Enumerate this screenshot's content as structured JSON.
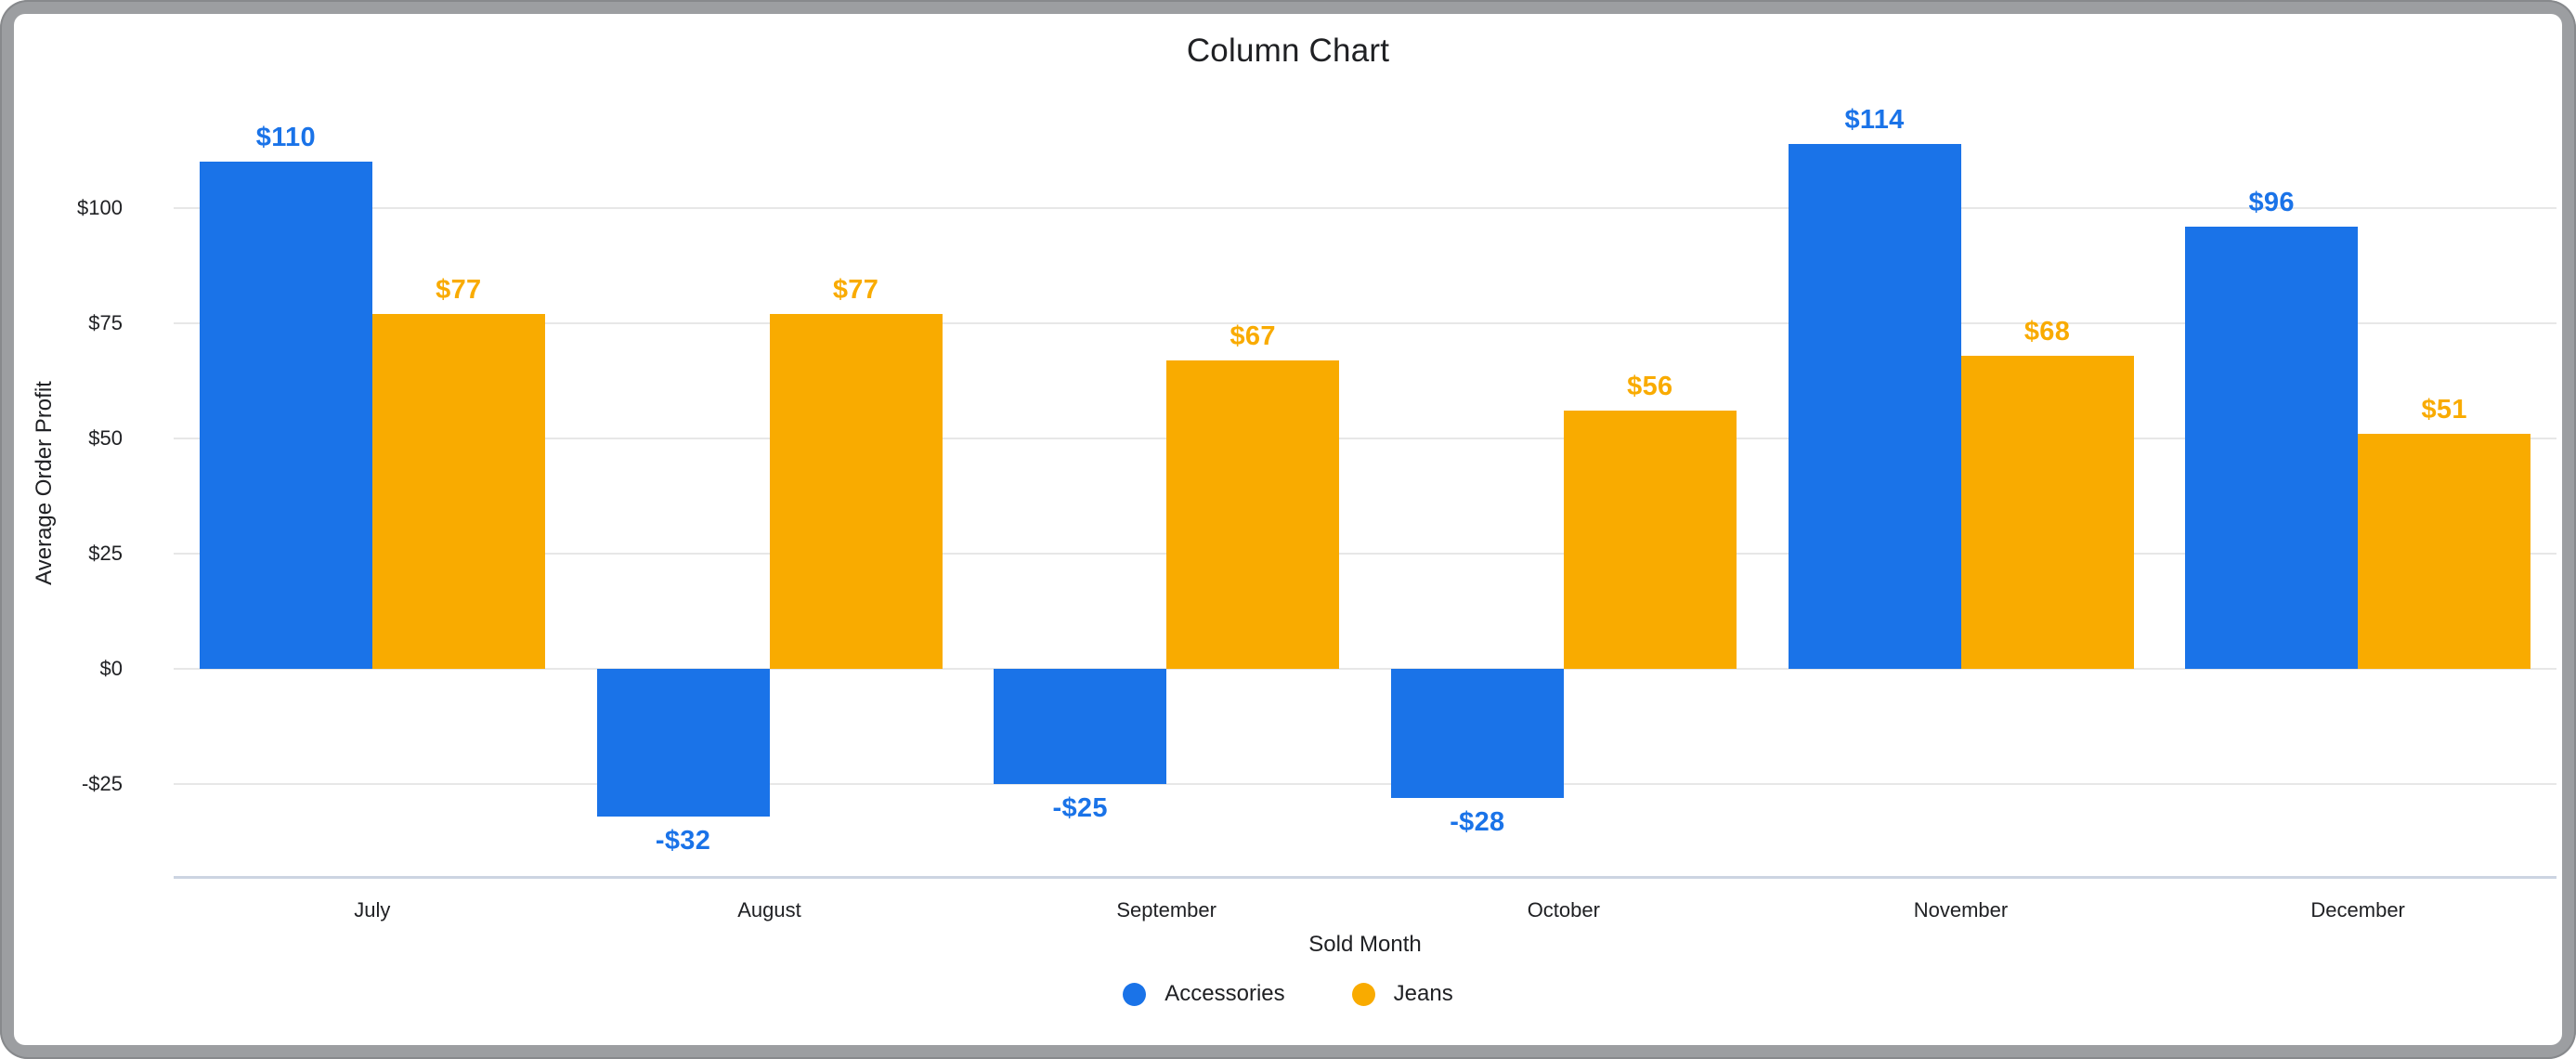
{
  "window": {
    "frame_color": "#9c9ea1",
    "card_color": "#ffffff"
  },
  "chart_data": {
    "type": "bar",
    "title": "Column Chart",
    "xlabel": "Sold Month",
    "ylabel": "Average Order Profit",
    "categories": [
      "July",
      "August",
      "September",
      "October",
      "November",
      "December"
    ],
    "series": [
      {
        "name": "Accessories",
        "color": "#1a73e8",
        "values": [
          110,
          -32,
          -25,
          -28,
          114,
          96
        ],
        "labels": [
          "$110",
          "-$32",
          "-$25",
          "-$28",
          "$114",
          "$96"
        ]
      },
      {
        "name": "Jeans",
        "color": "#f9ab00",
        "values": [
          77,
          77,
          67,
          56,
          68,
          51
        ],
        "labels": [
          "$77",
          "$77",
          "$67",
          "$56",
          "$68",
          "$51"
        ]
      }
    ],
    "y_ticks": [
      {
        "value": 100,
        "label": "$100"
      },
      {
        "value": 75,
        "label": "$75"
      },
      {
        "value": 50,
        "label": "$50"
      },
      {
        "value": 25,
        "label": "$25"
      },
      {
        "value": 0,
        "label": "$0"
      },
      {
        "value": -25,
        "label": "-$25"
      }
    ],
    "ylim": [
      -45,
      125
    ],
    "grid": true,
    "legend_position": "bottom",
    "colors": {
      "gridline": "#e7e7e7",
      "axis_line": "#ccd4e2",
      "text": "#202124"
    }
  }
}
